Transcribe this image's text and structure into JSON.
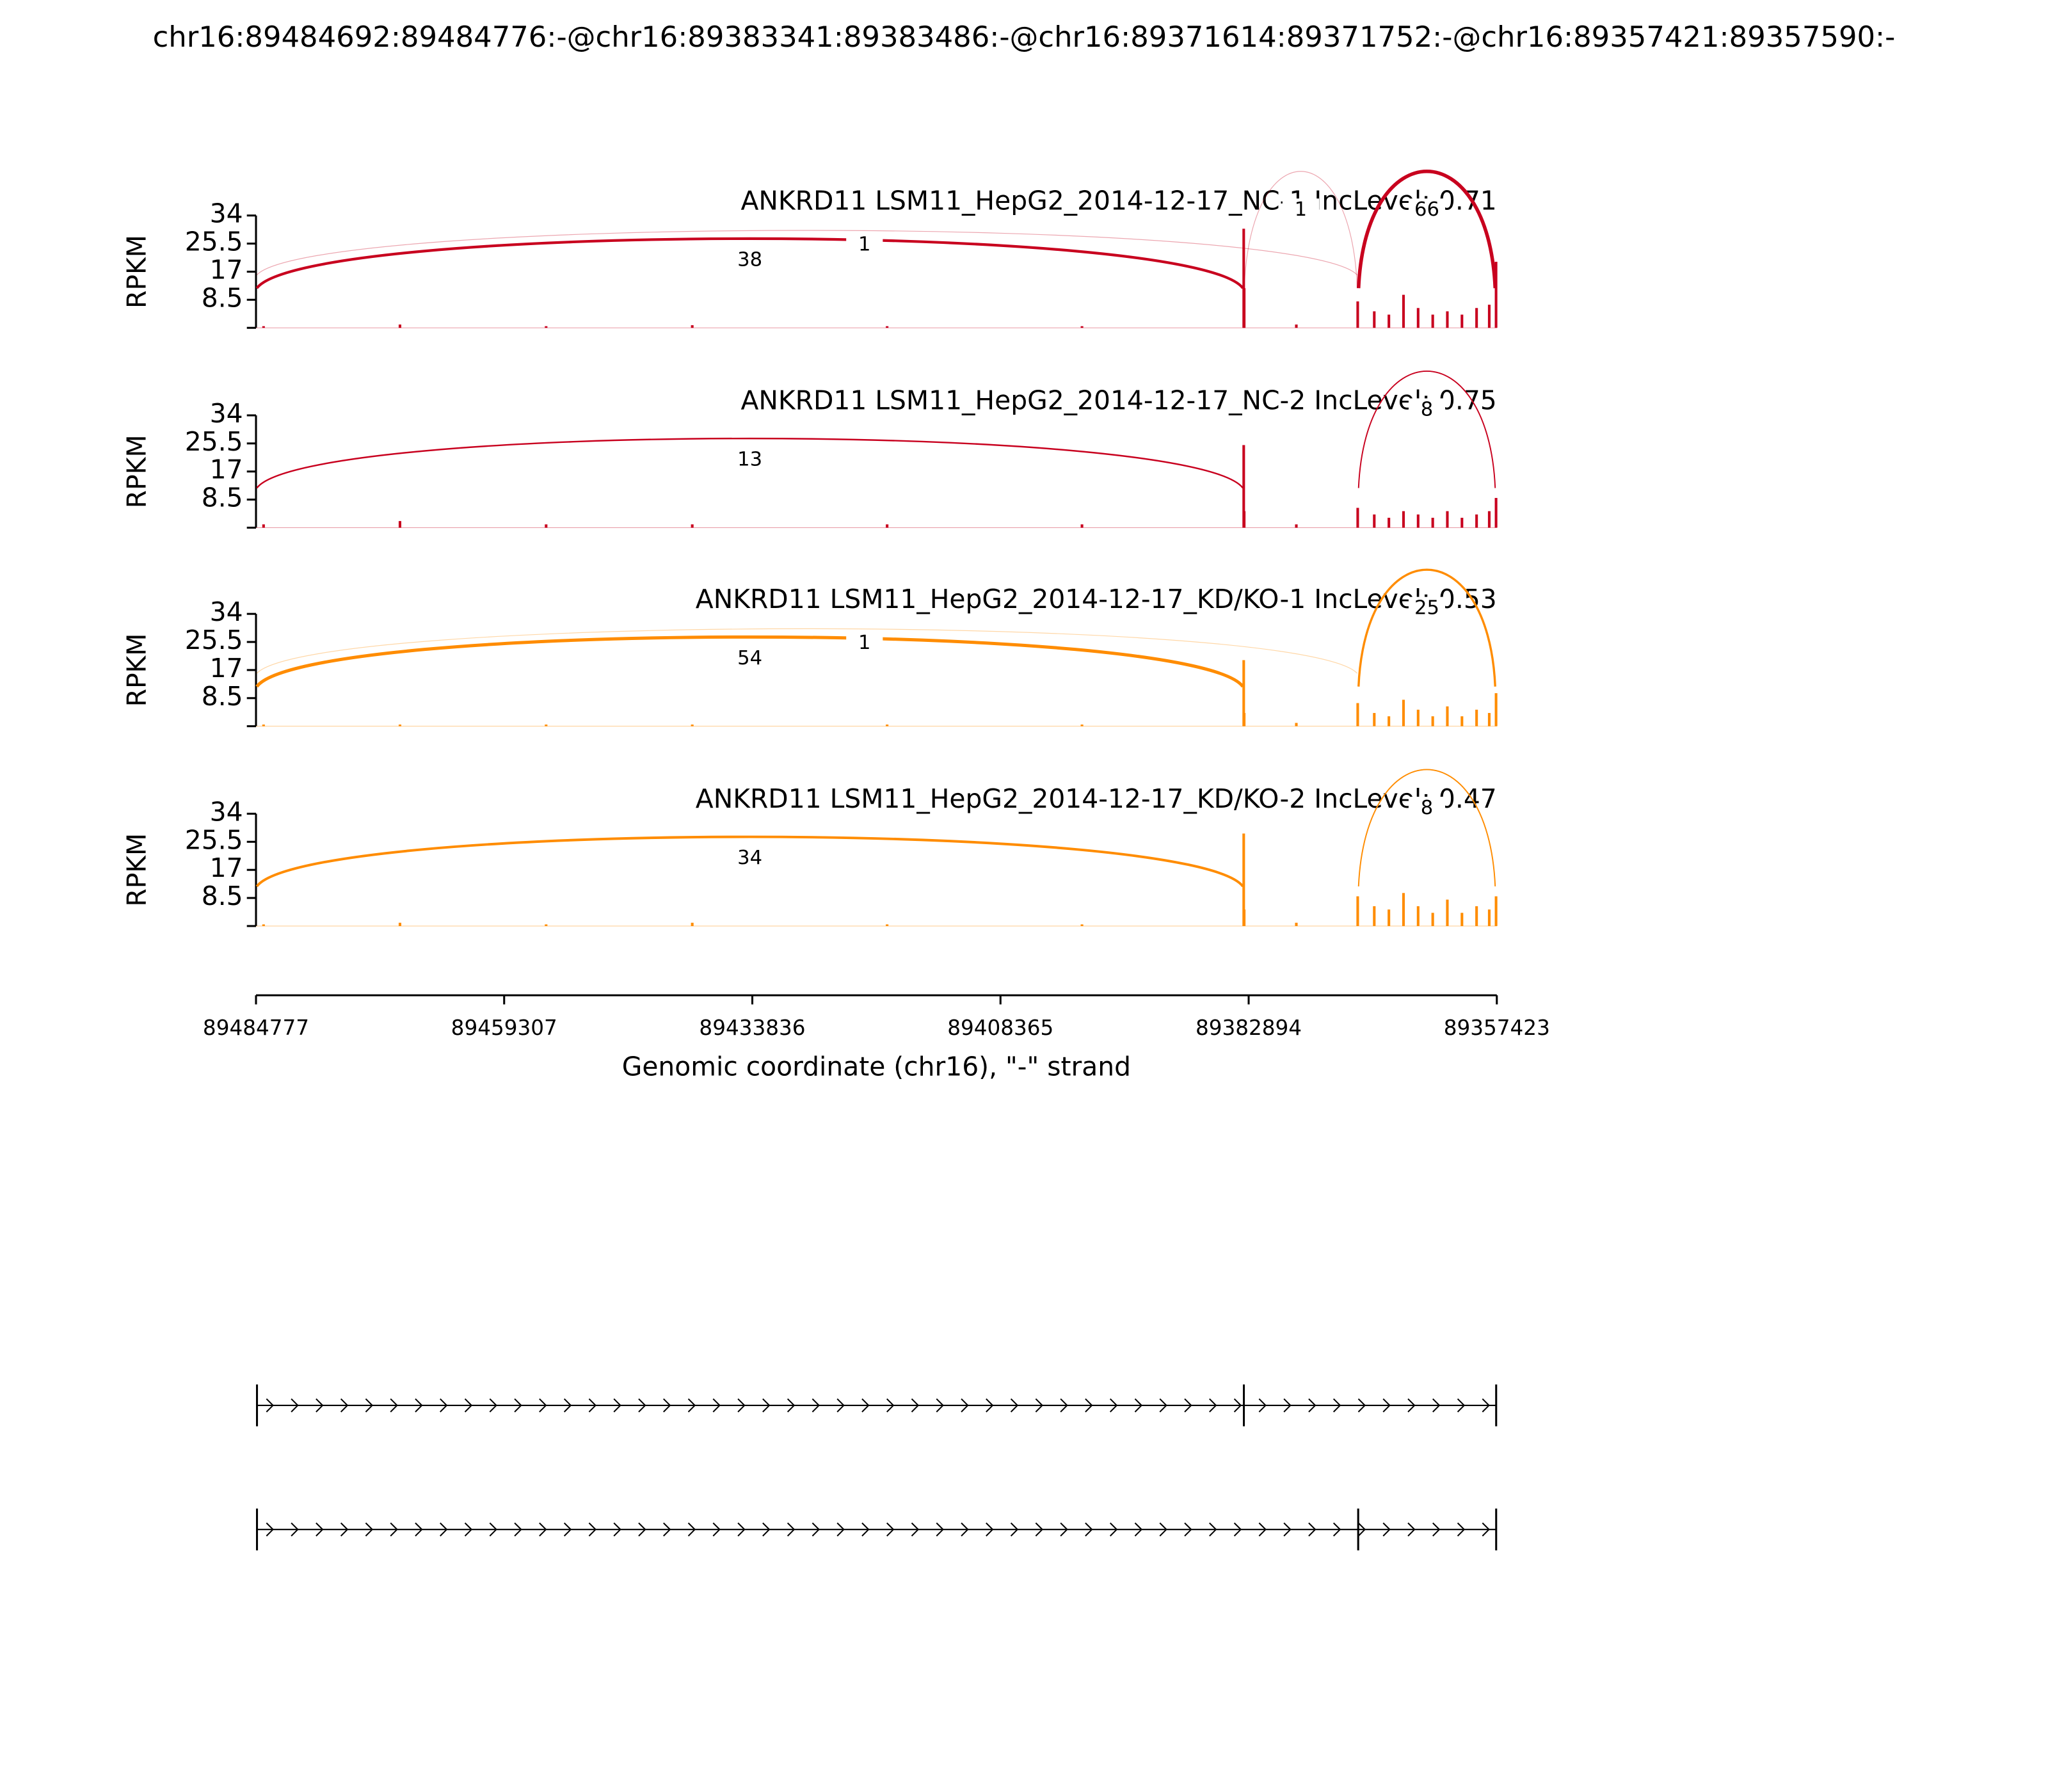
{
  "chart_data": {
    "type": "sashimi",
    "title": "chr16:89484692:89484776:-@chr16:89383341:89383486:-@chr16:89371614:89371752:-@chr16:89357421:89357590:-",
    "xlabel": "Genomic coordinate (chr16), \"-\" strand",
    "ylabel": "RPKM",
    "xlim": [
      89484777,
      89357423
    ],
    "xticks": [
      89484777,
      89459307,
      89433836,
      89408365,
      89382894,
      89357423
    ],
    "ylim": [
      0,
      34
    ],
    "yticks": [
      8.5,
      17,
      25.5,
      34
    ],
    "coverage_x": [
      89484000,
      89470000,
      89455000,
      89440000,
      89420000,
      89400000,
      89383400,
      89383350,
      89378000,
      89371700,
      89370000,
      89368500,
      89367000,
      89365500,
      89364000,
      89362500,
      89361000,
      89359500,
      89358200,
      89357500
    ],
    "panels": [
      {
        "title": "ANKRD11 LSM11_HepG2_2014-12-17_NC-1 IncLevel: 0.71",
        "color": "#c8001e",
        "coverage": [
          0.5,
          1,
          0.5,
          0.8,
          0.5,
          0.5,
          30,
          12,
          1,
          8,
          5,
          4,
          10,
          6,
          4,
          5,
          4,
          6,
          7,
          20
        ],
        "junctions": [
          {
            "donor": 89484692,
            "acceptor": 89383486,
            "count": 38
          },
          {
            "donor": 89484692,
            "acceptor": 89371752,
            "count": 1
          },
          {
            "donor": 89383341,
            "acceptor": 89371752,
            "count": 1
          },
          {
            "donor": 89371614,
            "acceptor": 89357590,
            "count": 66
          }
        ]
      },
      {
        "title": "ANKRD11 LSM11_HepG2_2014-12-17_NC-2 IncLevel: 0.75",
        "color": "#c8001e",
        "coverage": [
          1,
          2,
          1,
          1,
          1,
          1,
          25,
          5,
          1,
          6,
          4,
          3,
          5,
          4,
          3,
          5,
          3,
          4,
          5,
          9
        ],
        "junctions": [
          {
            "donor": 89484692,
            "acceptor": 89383486,
            "count": 13
          },
          {
            "donor": 89371614,
            "acceptor": 89357590,
            "count": 8
          }
        ]
      },
      {
        "title": "ANKRD11 LSM11_HepG2_2014-12-17_KD/KO-1 IncLevel: 0.53",
        "color": "#ff8c00",
        "coverage": [
          0.5,
          0.5,
          0.5,
          0.5,
          0.5,
          0.5,
          20,
          4,
          1,
          7,
          4,
          3,
          8,
          5,
          3,
          6,
          3,
          5,
          4,
          10
        ],
        "junctions": [
          {
            "donor": 89484692,
            "acceptor": 89383486,
            "count": 54
          },
          {
            "donor": 89484692,
            "acceptor": 89371752,
            "count": 1
          },
          {
            "donor": 89371614,
            "acceptor": 89357590,
            "count": 25
          }
        ]
      },
      {
        "title": "ANKRD11 LSM11_HepG2_2014-12-17_KD/KO-2 IncLevel: 0.47",
        "color": "#ff8c00",
        "coverage": [
          0.5,
          1,
          0.5,
          1,
          0.5,
          0.5,
          28,
          5,
          1,
          9,
          6,
          5,
          10,
          6,
          4,
          8,
          4,
          6,
          5,
          9
        ],
        "junctions": [
          {
            "donor": 89484692,
            "acceptor": 89383486,
            "count": 34
          },
          {
            "donor": 89371614,
            "acceptor": 89357590,
            "count": 8
          }
        ]
      }
    ],
    "transcripts": [
      {
        "exons": [
          [
            89484692,
            89484776
          ],
          [
            89383341,
            89383486
          ],
          [
            89357421,
            89357590
          ]
        ]
      },
      {
        "exons": [
          [
            89484692,
            89484776
          ],
          [
            89371614,
            89371752
          ],
          [
            89357421,
            89357590
          ]
        ]
      }
    ]
  }
}
